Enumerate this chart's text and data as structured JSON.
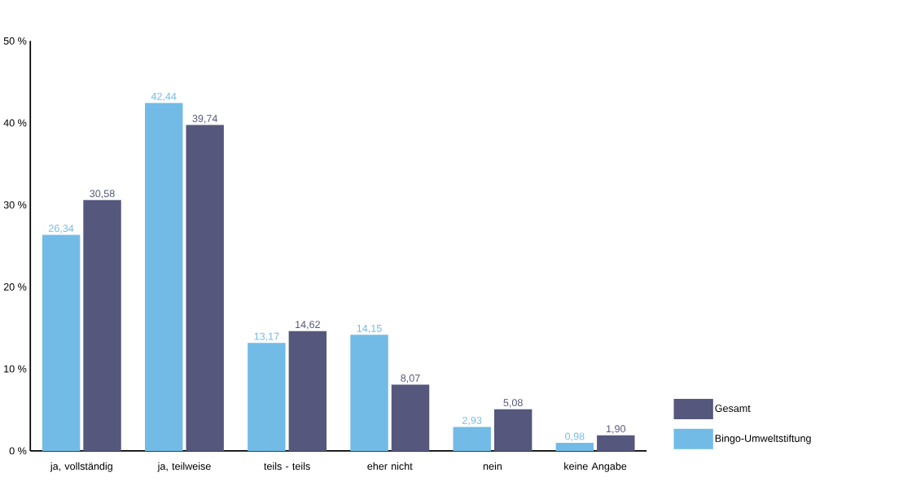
{
  "chart_data": {
    "type": "bar",
    "categories": [
      "ja, vollständig",
      "ja, teilweise",
      "teils - teils",
      "eher nicht",
      "nein",
      "keine Angabe"
    ],
    "series": [
      {
        "name": "Bingo-Umweltstiftung",
        "color": "#72bbe6",
        "values": [
          26.34,
          42.44,
          13.17,
          14.15,
          2.93,
          0.98
        ],
        "value_labels": [
          "26,34",
          "42,44",
          "13,17",
          "14,15",
          "2,93",
          "0,98"
        ]
      },
      {
        "name": "Gesamt",
        "color": "#55587c",
        "values": [
          30.58,
          39.74,
          14.62,
          8.07,
          5.08,
          1.9
        ],
        "value_labels": [
          "30,58",
          "39,74",
          "14,62",
          "8,07",
          "5,08",
          "1,90"
        ]
      }
    ],
    "ylim": [
      0,
      50
    ],
    "yticks": [
      {
        "value": 0,
        "label": "0 %"
      },
      {
        "value": 10,
        "label": "10 %"
      },
      {
        "value": 20,
        "label": "20 %"
      },
      {
        "value": 30,
        "label": "30 %"
      },
      {
        "value": 40,
        "label": "40 %"
      },
      {
        "value": 50,
        "label": "50 %"
      }
    ],
    "grid": false,
    "legend": "right"
  }
}
